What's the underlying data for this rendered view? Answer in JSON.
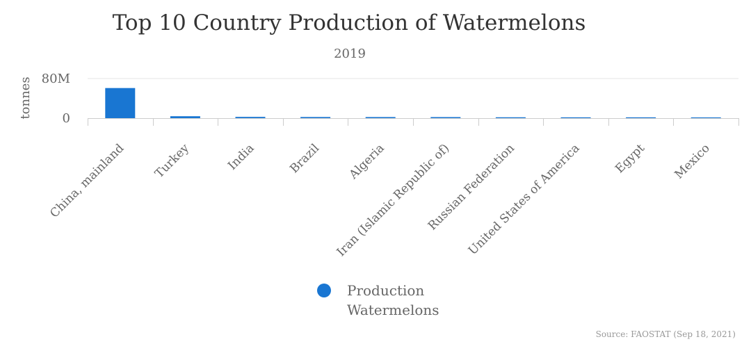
{
  "chart_data": {
    "type": "bar",
    "title": "Top 10 Country Production of Watermelons",
    "subtitle": "2019",
    "ylabel": "tonnes",
    "xlabel": "",
    "ylim": [
      0,
      80000000
    ],
    "yticks": [
      0,
      80000000
    ],
    "ytick_labels": [
      "0",
      "80M"
    ],
    "categories": [
      "China, mainland",
      "Turkey",
      "India",
      "Brazil",
      "Algeria",
      "Iran (Islamic Republic of)",
      "Russian Federation",
      "United States of America",
      "Egypt",
      "Mexico"
    ],
    "series": [
      {
        "name": "Production Watermelons",
        "color": "#1976d2",
        "values": [
          60800000,
          3870000,
          2520000,
          2280000,
          2190000,
          2120000,
          1750000,
          1640000,
          1630000,
          1490000
        ]
      }
    ],
    "legend": {
      "position": "bottom-center",
      "lines": [
        "Production",
        "Watermelons"
      ]
    },
    "grid": true,
    "source": "Source: FAOSTAT (Sep 18, 2021)"
  }
}
